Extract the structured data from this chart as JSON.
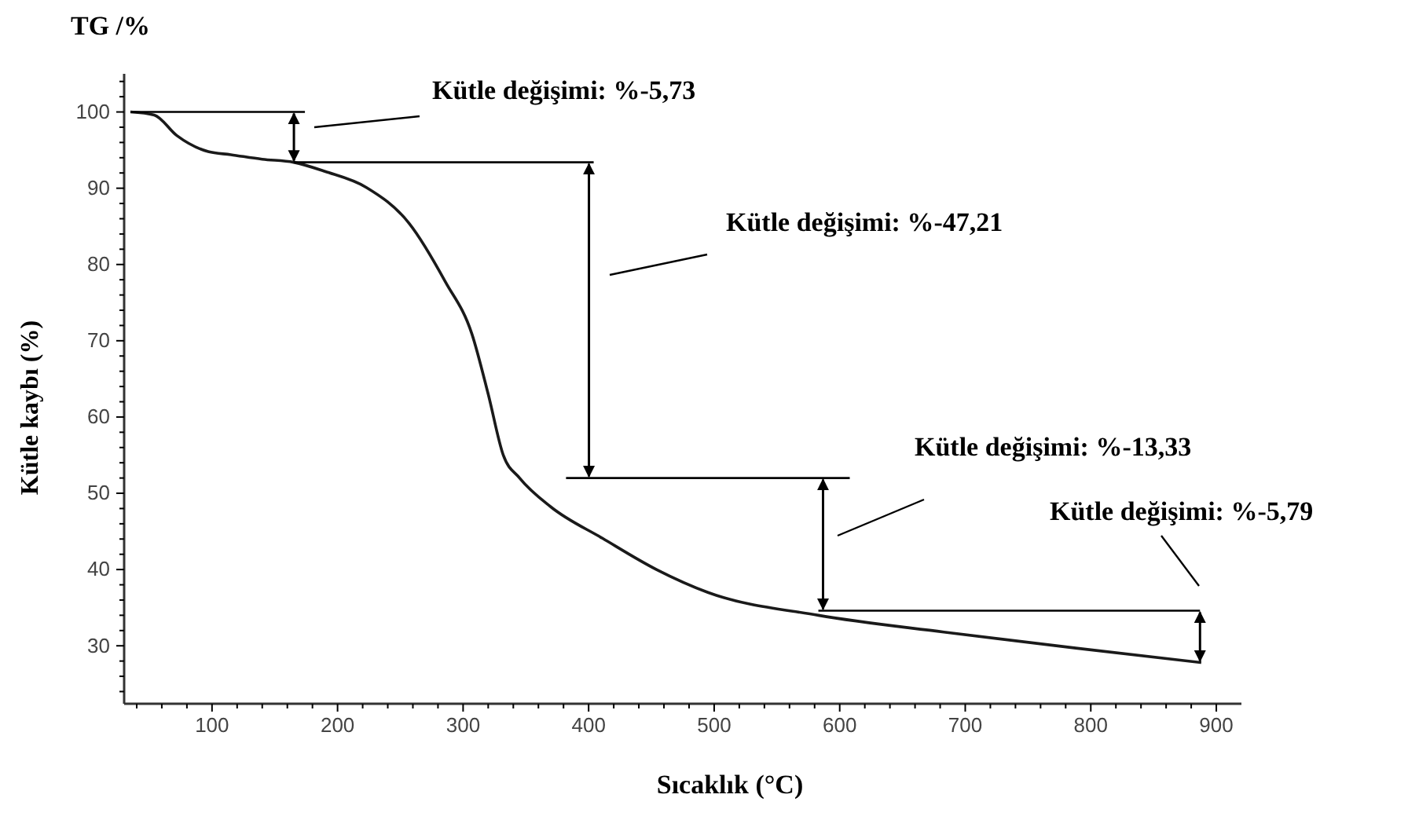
{
  "chart_data": {
    "type": "line",
    "title": "TG /%",
    "xlabel": "Sıcaklık (°C)",
    "ylabel": "Kütle kaybı (%)",
    "xlim": [
      30,
      920
    ],
    "ylim": [
      22.4,
      105
    ],
    "xticks": [
      {
        "value": 40,
        "label": null
      },
      {
        "value": 60,
        "label": null
      },
      {
        "value": 80,
        "label": null
      },
      100,
      {
        "value": 120,
        "label": null
      },
      {
        "value": 140,
        "label": null
      },
      {
        "value": 160,
        "label": null
      },
      {
        "value": 180,
        "label": null
      },
      200,
      {
        "value": 220,
        "label": null
      },
      {
        "value": 240,
        "label": null
      },
      {
        "value": 260,
        "label": null
      },
      {
        "value": 280,
        "label": null
      },
      300,
      {
        "value": 320,
        "label": null
      },
      {
        "value": 340,
        "label": null
      },
      {
        "value": 360,
        "label": null
      },
      {
        "value": 380,
        "label": null
      },
      400,
      {
        "value": 420,
        "label": null
      },
      {
        "value": 440,
        "label": null
      },
      {
        "value": 460,
        "label": null
      },
      {
        "value": 480,
        "label": null
      },
      500,
      {
        "value": 520,
        "label": null
      },
      {
        "value": 540,
        "label": null
      },
      {
        "value": 560,
        "label": null
      },
      {
        "value": 580,
        "label": null
      },
      600,
      {
        "value": 620,
        "label": null
      },
      {
        "value": 640,
        "label": null
      },
      {
        "value": 660,
        "label": null
      },
      {
        "value": 680,
        "label": null
      },
      700,
      {
        "value": 720,
        "label": null
      },
      {
        "value": 740,
        "label": null
      },
      {
        "value": 760,
        "label": null
      },
      {
        "value": 780,
        "label": null
      },
      800,
      {
        "value": 820,
        "label": null
      },
      {
        "value": 840,
        "label": null
      },
      {
        "value": 860,
        "label": null
      },
      {
        "value": 880,
        "label": null
      },
      900
    ],
    "yticks": [
      {
        "value": 24,
        "label": null
      },
      {
        "value": 26,
        "label": null
      },
      {
        "value": 28,
        "label": null
      },
      30,
      {
        "value": 32,
        "label": null
      },
      {
        "value": 34,
        "label": null
      },
      {
        "value": 36,
        "label": null
      },
      {
        "value": 38,
        "label": null
      },
      40,
      {
        "value": 42,
        "label": null
      },
      {
        "value": 44,
        "label": null
      },
      {
        "value": 46,
        "label": null
      },
      {
        "value": 48,
        "label": null
      },
      50,
      {
        "value": 52,
        "label": null
      },
      {
        "value": 54,
        "label": null
      },
      {
        "value": 56,
        "label": null
      },
      {
        "value": 58,
        "label": null
      },
      60,
      {
        "value": 62,
        "label": null
      },
      {
        "value": 64,
        "label": null
      },
      {
        "value": 66,
        "label": null
      },
      {
        "value": 68,
        "label": null
      },
      70,
      {
        "value": 72,
        "label": null
      },
      {
        "value": 74,
        "label": null
      },
      {
        "value": 76,
        "label": null
      },
      {
        "value": 78,
        "label": null
      },
      80,
      {
        "value": 82,
        "label": null
      },
      {
        "value": 84,
        "label": null
      },
      {
        "value": 86,
        "label": null
      },
      {
        "value": 88,
        "label": null
      },
      90,
      {
        "value": 92,
        "label": null
      },
      {
        "value": 94,
        "label": null
      },
      {
        "value": 96,
        "label": null
      },
      {
        "value": 98,
        "label": null
      },
      100,
      {
        "value": 102,
        "label": null
      },
      {
        "value": 104,
        "label": null
      }
    ],
    "grid": false,
    "x": [
      35,
      54,
      72,
      97,
      115,
      140,
      165,
      190,
      223,
      257,
      286,
      307,
      320,
      332,
      345,
      370,
      411,
      454,
      495,
      583,
      683,
      788,
      888
    ],
    "series": [
      {
        "color": "#1a1a1a",
        "values": [
          100,
          99.6,
          96.9,
          94.8,
          94.4,
          93.8,
          93.4,
          92.2,
          90.1,
          85.4,
          77.7,
          70.9,
          63,
          55,
          52,
          48.2,
          44.1,
          40,
          37,
          34,
          31.8,
          29.7,
          27.8
        ]
      },
      {
        "color": "#000000",
        "x": [
          35,
          174
        ],
        "values": [
          100,
          100
        ]
      },
      {
        "color": "#000000",
        "x": [
          165,
          404
        ],
        "values": [
          93.4,
          93.4
        ]
      },
      {
        "color": "#000000",
        "x": [
          382,
          608
        ],
        "values": [
          52,
          52
        ]
      },
      {
        "color": "#000000",
        "x": [
          583,
          887
        ],
        "values": [
          34.6,
          34.6
        ]
      }
    ],
    "annotations": [
      "Kütle değişimi: %-5,73",
      "Kütle değişimi: %-47,21",
      "Kütle değişimi: %-13,33",
      "Kütle değişimi: %-5,79"
    ]
  }
}
